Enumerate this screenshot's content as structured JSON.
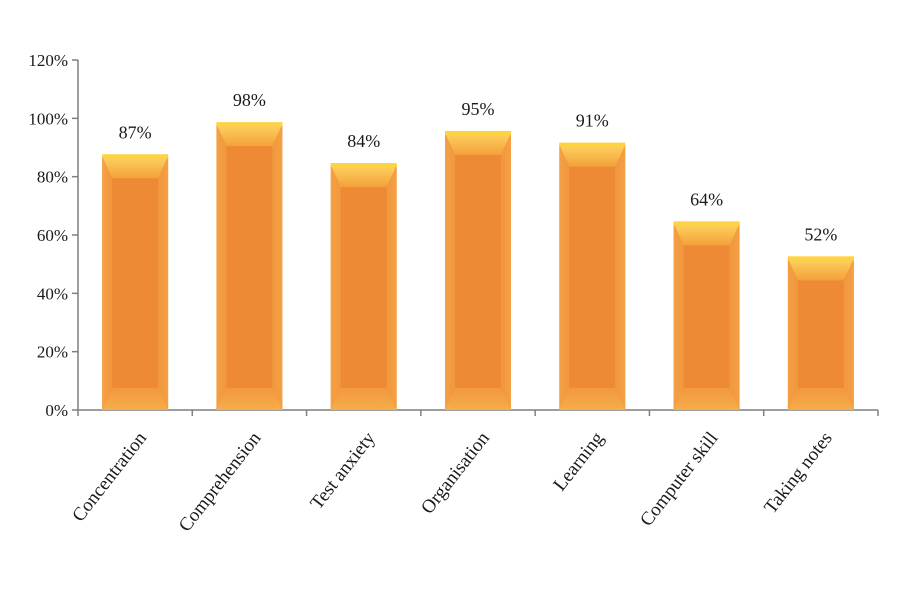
{
  "chart_data": {
    "type": "bar",
    "categories": [
      "Concentration",
      "Comprehension",
      "Test anxiety",
      "Organisation",
      "Learning",
      "Computer skill",
      "Taking notes"
    ],
    "values": [
      87,
      98,
      84,
      95,
      91,
      64,
      52
    ],
    "data_labels": [
      "87%",
      "98%",
      "84%",
      "95%",
      "91%",
      "64%",
      "52%"
    ],
    "title": "",
    "xlabel": "",
    "ylabel": "",
    "ylim": [
      0,
      120
    ],
    "yticks": [
      0,
      20,
      40,
      60,
      80,
      100,
      120
    ],
    "ytick_labels": [
      "0%",
      "20%",
      "40%",
      "60%",
      "80%",
      "100%",
      "120%"
    ],
    "grid": false,
    "legend": "none",
    "colors": {
      "bar": "#ef8a33",
      "bar_edge": "#f7b04a",
      "bar_top": "#ffd23f",
      "axis": "#7f7f7f"
    }
  }
}
